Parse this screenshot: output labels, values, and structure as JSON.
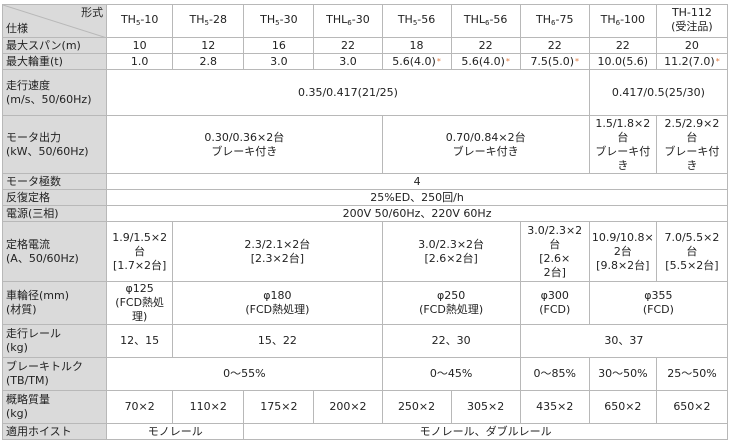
{
  "header": {
    "corner_top": "形式",
    "corner_bottom": "仕様",
    "models": [
      {
        "pre": "TH",
        "sub": "5",
        "post": "-10"
      },
      {
        "pre": "TH",
        "sub": "5",
        "post": "-28"
      },
      {
        "pre": "TH",
        "sub": "5",
        "post": "-30"
      },
      {
        "pre": "THL",
        "sub": "6",
        "post": "-30"
      },
      {
        "pre": "TH",
        "sub": "5",
        "post": "-56"
      },
      {
        "pre": "THL",
        "sub": "6",
        "post": "-56"
      },
      {
        "pre": "TH",
        "sub": "6",
        "post": "-75"
      },
      {
        "pre": "TH",
        "sub": "6",
        "post": "-100"
      },
      {
        "pre": "TH-112\n(受注品)",
        "sub": "",
        "post": ""
      }
    ]
  },
  "rows": {
    "span": {
      "label": "最大スパン(m)",
      "values": [
        "10",
        "12",
        "16",
        "22",
        "18",
        "22",
        "22",
        "22",
        "20"
      ]
    },
    "wheel_load": {
      "label": "最大輪重(t)",
      "values": [
        "1.0",
        "2.8",
        "3.0",
        "3.0",
        "5.6(4.0)",
        "5.6(4.0)",
        "7.5(5.0)",
        "10.0(5.6)",
        "11.2(7.0)"
      ],
      "star": "*"
    },
    "speed": {
      "label": "走行速度\n(m/s、50/60Hz)",
      "v1": "0.35/0.417(21/25)",
      "v2": "0.417/0.5(25/30)"
    },
    "motor": {
      "label": "モータ出力\n(kW、50/60Hz)",
      "v1": "0.30/0.36×2台\nブレーキ付き",
      "v2": "0.70/0.84×2台\nブレーキ付き",
      "v3": "1.5/1.8×2\n台\nブレーキ付\nき",
      "v4": "2.5/2.9×2\n台\nブレーキ付\nき"
    },
    "poles": {
      "label": "モータ極数",
      "value": "4"
    },
    "rating": {
      "label": "反復定格",
      "value": "25%ED、250回/h"
    },
    "power": {
      "label": "電源(三相)",
      "value": "200V 50/60Hz、220V 60Hz"
    },
    "current": {
      "label": "定格電流\n(A、50/60Hz)",
      "v1": "1.9/1.5×2\n台\n[1.7×2台]",
      "v2": "2.3/2.1×2台\n[2.3×2台]",
      "v3": "3.0/2.3×2台\n[2.6×2台]",
      "v4": "3.0/2.3×2\n台\n[2.6×\n2台]",
      "v5": "10.9/10.8×\n2台\n[9.8×2台]",
      "v6": "7.0/5.5×2\n台\n[5.5×2台]"
    },
    "wheel_dia": {
      "label": "車輪径(mm)\n(材質)",
      "v1": "φ125\n(FCD熱処理)",
      "v2": "φ180\n(FCD熱処理)",
      "v3": "φ250\n(FCD熱処理)",
      "v4": "φ300\n(FCD)",
      "v5": "φ355\n(FCD)"
    },
    "rail": {
      "label": "走行レール\n(kg)",
      "v1": "12、15",
      "v2": "15、22",
      "v3": "22、30",
      "v4": "30、37"
    },
    "torque": {
      "label": "ブレーキトルク\n(TB/TM)",
      "v1": "0〜55%",
      "v2": "0〜45%",
      "v3": "0〜85%",
      "v4": "30〜50%",
      "v5": "25〜50%"
    },
    "mass": {
      "label": "概略質量\n(kg)",
      "values": [
        "70×2",
        "110×2",
        "175×2",
        "200×2",
        "250×2",
        "305×2",
        "435×2",
        "650×2",
        "650×2"
      ]
    },
    "hoist": {
      "label": "適用ホイスト",
      "v1": "モノレール",
      "v2": "モノレール、ダブルレール"
    }
  }
}
